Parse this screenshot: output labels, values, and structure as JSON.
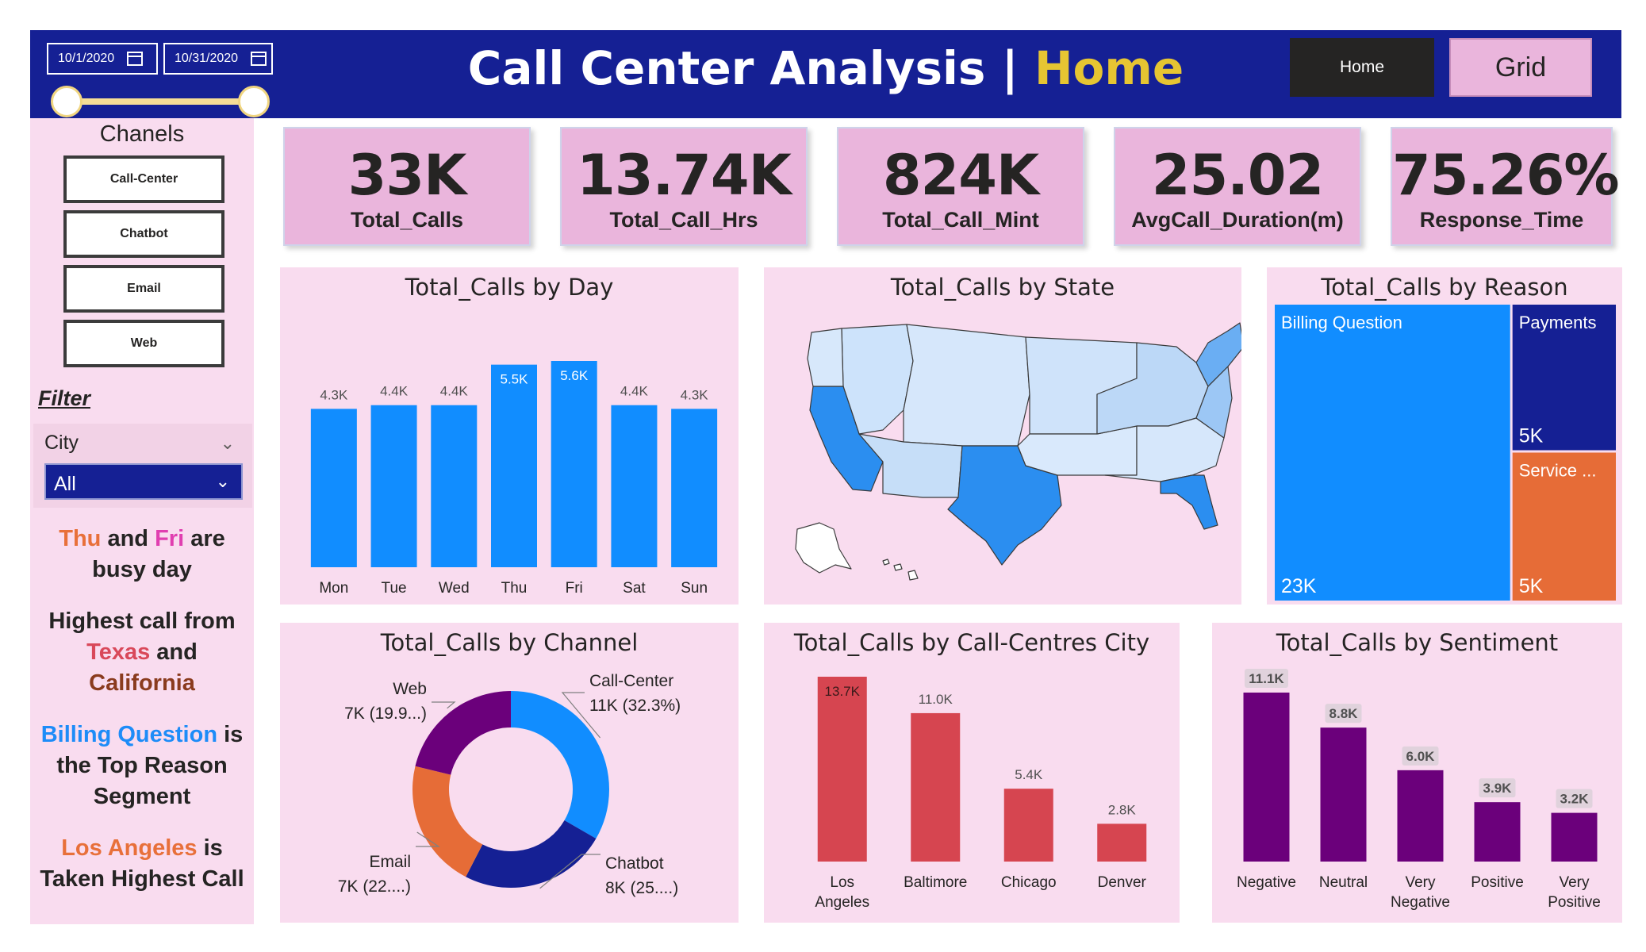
{
  "header": {
    "date_start": "10/1/2020",
    "date_end": "10/31/2020",
    "title_main": "Call Center Analysis | ",
    "title_accent": "Home",
    "nav_home": "Home",
    "nav_grid": "Grid"
  },
  "sidebar": {
    "channels_heading": "Chanels",
    "channel_buttons": [
      "Call-Center",
      "Chatbot",
      "Email",
      "Web"
    ],
    "filter_label": "Filter",
    "slicer_title": "City",
    "slicer_value": "All",
    "insight1": {
      "a": "Thu",
      "b": " and ",
      "c": "Fri",
      "d": " are",
      "e": "busy day"
    },
    "insight2": {
      "a": "Highest call from",
      "b": "Texas",
      "c": " and",
      "d": "California"
    },
    "insight3": {
      "a": "Billing Question",
      "b": " is",
      "c": "the Top Reason",
      "d": "Segment"
    },
    "insight4": {
      "a": "Los Angeles",
      "b": " is",
      "c": "Taken Highest Call"
    }
  },
  "kpis": [
    {
      "value": "33K",
      "label": "Total_Calls"
    },
    {
      "value": "13.74K",
      "label": "Total_Call_Hrs"
    },
    {
      "value": "824K",
      "label": "Total_Call_Mint"
    },
    {
      "value": "25.02",
      "label": "AvgCall_Duration(m)"
    },
    {
      "value": "75.26%",
      "label": "Response_Time"
    }
  ],
  "panels": {
    "by_day": "Total_Calls by Day",
    "by_state": "Total_Calls by State",
    "by_reason": "Total_Calls by Reason",
    "by_channel": "Total_Calls by Channel",
    "by_city": "Total_Calls by Call-Centres City",
    "by_sentiment": "Total_Calls by Sentiment"
  },
  "colors": {
    "navy": "#152094",
    "blue": "#118dff",
    "orange": "#e66c37",
    "purple": "#6b007b",
    "red": "#d64550",
    "pink_bg": "#f9dcef",
    "kpi_bg": "#eab5dc",
    "gold": "#e6c532"
  },
  "chart_data": [
    {
      "type": "bar",
      "title": "Total_Calls by Day",
      "categories": [
        "Mon",
        "Tue",
        "Wed",
        "Thu",
        "Fri",
        "Sat",
        "Sun"
      ],
      "values": [
        4300,
        4400,
        4400,
        5500,
        5600,
        4400,
        4300
      ],
      "labels": [
        "4.3K",
        "4.4K",
        "4.4K",
        "5.5K",
        "5.6K",
        "4.4K",
        "4.3K"
      ],
      "ylim": [
        0,
        5600
      ]
    },
    {
      "type": "treemap",
      "title": "Total_Calls by Reason",
      "categories": [
        "Billing Question",
        "Payments",
        "Service ..."
      ],
      "values": [
        23000,
        5000,
        5000
      ],
      "labels": [
        "23K",
        "5K",
        "5K"
      ]
    },
    {
      "type": "pie",
      "title": "Total_Calls by Channel",
      "categories": [
        "Call-Center",
        "Chatbot",
        "Email",
        "Web"
      ],
      "values": [
        11000,
        8000,
        7000,
        7000
      ],
      "labels": [
        "11K (32.3%)",
        "8K (25....)",
        "7K (22....)",
        "7K (19.9...)"
      ],
      "percent": [
        32.3,
        25.0,
        22.8,
        19.9
      ]
    },
    {
      "type": "bar",
      "title": "Total_Calls by Call-Centres City",
      "categories": [
        "Los Angeles",
        "Baltimore",
        "Chicago",
        "Denver"
      ],
      "values": [
        13700,
        11000,
        5400,
        2800
      ],
      "labels": [
        "13.7K",
        "11.0K",
        "5.4K",
        "2.8K"
      ],
      "ylim": [
        0,
        13700
      ]
    },
    {
      "type": "bar",
      "title": "Total_Calls by Sentiment",
      "categories": [
        "Negative",
        "Neutral",
        "Very Negative",
        "Positive",
        "Very Positive"
      ],
      "values": [
        11100,
        8800,
        6000,
        3900,
        3200
      ],
      "labels": [
        "11.1K",
        "8.8K",
        "6.0K",
        "3.9K",
        "3.2K"
      ],
      "ylim": [
        0,
        11100
      ]
    }
  ]
}
